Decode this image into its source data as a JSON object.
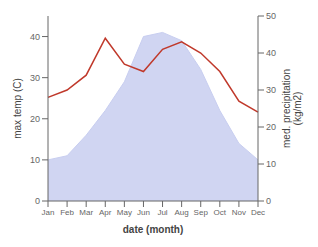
{
  "chart_data": {
    "type": "area",
    "x_label": "date (month)",
    "y_label": "max temp (C)",
    "y2_label": "med. precipitation\n(kg/m2)",
    "categories": [
      "Jan",
      "Feb",
      "Mar",
      "Apr",
      "May",
      "Jun",
      "Jul",
      "Aug",
      "Sep",
      "Oct",
      "Nov",
      "Dec"
    ],
    "series": [
      {
        "type": "area",
        "color": "#c8cef0",
        "values": [
          10,
          11,
          16,
          22,
          29,
          40,
          41,
          39,
          32,
          22,
          14,
          10
        ]
      },
      {
        "type": "line",
        "color": "#c0392b",
        "axis": "y2",
        "values": [
          28,
          30,
          34,
          44,
          37,
          35,
          41,
          43,
          40,
          35,
          27,
          24
        ]
      }
    ],
    "ylim": [
      0,
      45
    ],
    "yticks": [
      0,
      10,
      20,
      30,
      40
    ],
    "y2lim": [
      0,
      50
    ],
    "y2ticks": [
      0,
      10,
      20,
      30,
      40,
      50
    ],
    "grid": false
  }
}
